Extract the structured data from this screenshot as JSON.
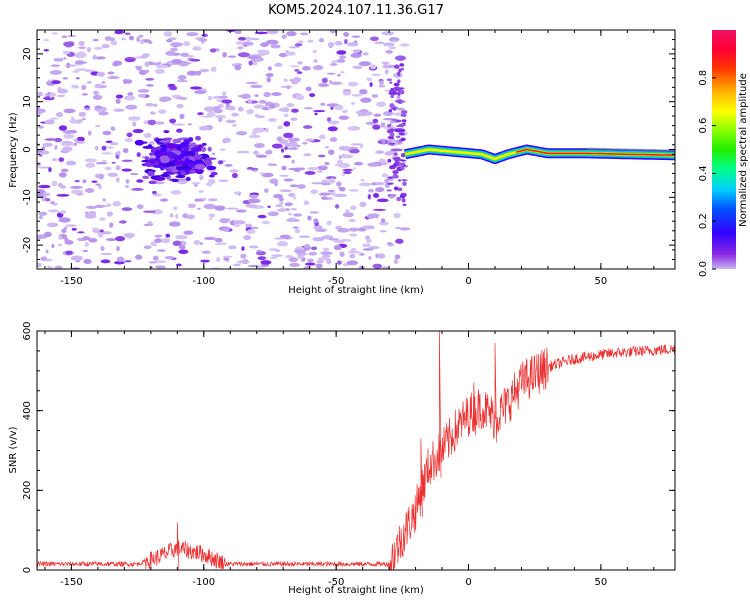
{
  "title": "KOM5.2024.107.11.36.G17",
  "chart_data": [
    {
      "type": "heatmap",
      "xlabel": "Height of straight line (km)",
      "ylabel": "Frequency (Hz)",
      "xlim": [
        -163,
        78
      ],
      "ylim": [
        -25,
        25
      ],
      "xticks": [
        -150,
        -100,
        -50,
        0,
        50
      ],
      "yticks": [
        20,
        10,
        0,
        -10,
        -20
      ],
      "colorbar": {
        "label": "Normalized spectral amplitude",
        "range": [
          0,
          1
        ],
        "ticks": [
          "0.0",
          "0.2",
          "0.4",
          "0.6",
          "0.8"
        ],
        "colormap": "rainbow (violet-blue-cyan-green-yellow-orange-red-pink)"
      },
      "features": {
        "noise_region_x": [
          -163,
          -24
        ],
        "noise_cluster_center": {
          "x": -110,
          "y": -2,
          "half_width_x": 20,
          "half_height_y": 7
        },
        "signal_line": {
          "x_start": -24,
          "x_end": 78,
          "frequency_trace": [
            {
              "x": -24,
              "y": -1
            },
            {
              "x": -15,
              "y": 0
            },
            {
              "x": -5,
              "y": -0.5
            },
            {
              "x": 5,
              "y": -1
            },
            {
              "x": 10,
              "y": -2
            },
            {
              "x": 15,
              "y": -1
            },
            {
              "x": 22,
              "y": 0
            },
            {
              "x": 30,
              "y": -0.8
            },
            {
              "x": 45,
              "y": -0.8
            },
            {
              "x": 60,
              "y": -1
            },
            {
              "x": 78,
              "y": -1.2
            }
          ]
        }
      }
    },
    {
      "type": "line",
      "xlabel": "Height of straight line (km)",
      "ylabel": "SNR (v/v)",
      "xlim": [
        -163,
        78
      ],
      "ylim": [
        0,
        600
      ],
      "xticks": [
        -150,
        -100,
        -50,
        0,
        50
      ],
      "yticks": [
        0,
        200,
        400,
        600
      ],
      "series_color": "#ee3030",
      "envelope": [
        {
          "x": -163,
          "y": 15
        },
        {
          "x": -125,
          "y": 15
        },
        {
          "x": -118,
          "y": 30
        },
        {
          "x": -110,
          "y": 55
        },
        {
          "x": -100,
          "y": 40
        },
        {
          "x": -92,
          "y": 15
        },
        {
          "x": -30,
          "y": 15
        },
        {
          "x": -20,
          "y": 150
        },
        {
          "x": -15,
          "y": 260
        },
        {
          "x": -10,
          "y": 300
        },
        {
          "x": -5,
          "y": 350
        },
        {
          "x": 0,
          "y": 390
        },
        {
          "x": 5,
          "y": 410
        },
        {
          "x": 10,
          "y": 380
        },
        {
          "x": 15,
          "y": 420
        },
        {
          "x": 20,
          "y": 470
        },
        {
          "x": 30,
          "y": 510
        },
        {
          "x": 40,
          "y": 530
        },
        {
          "x": 55,
          "y": 545
        },
        {
          "x": 78,
          "y": 555
        }
      ],
      "spikes": [
        {
          "x": -11,
          "y": 600
        },
        {
          "x": 10,
          "y": 570
        },
        {
          "x": -110,
          "y": 120
        },
        {
          "x": -18,
          "y": 330
        },
        {
          "x": 2,
          "y": 470
        }
      ]
    }
  ]
}
